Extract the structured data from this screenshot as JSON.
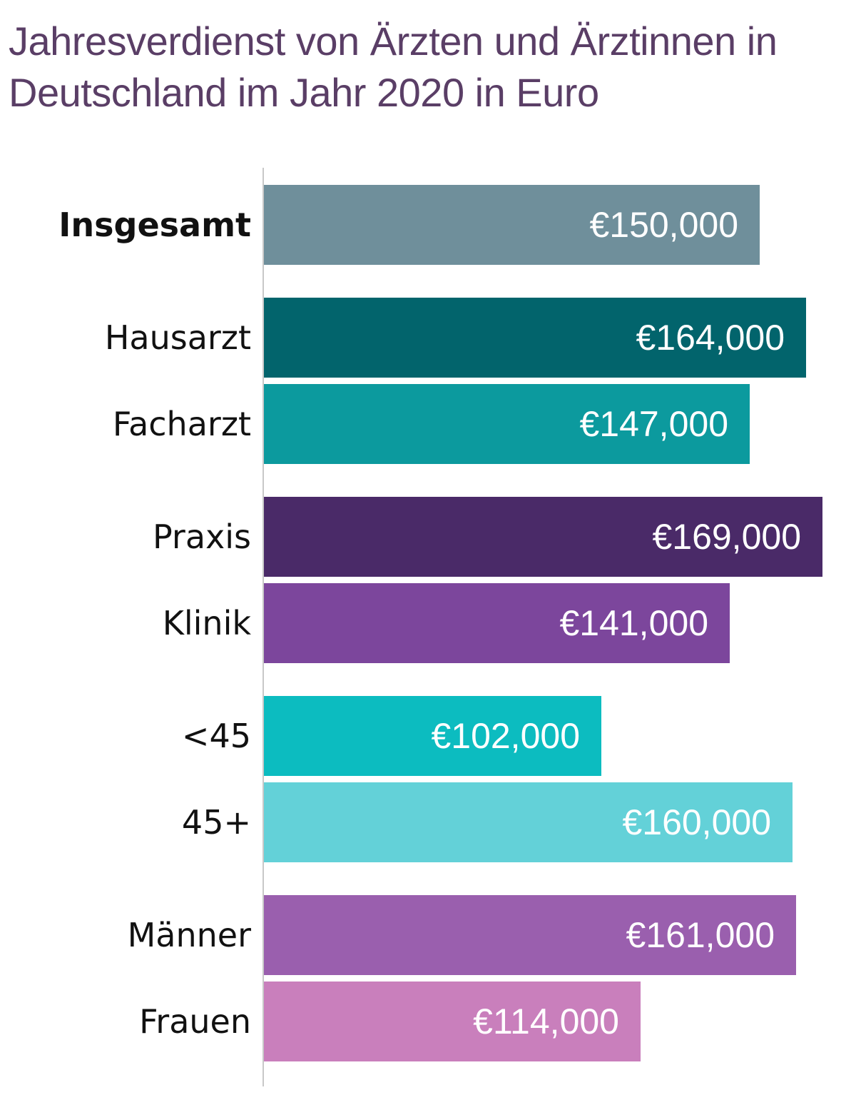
{
  "chart_data": {
    "type": "bar",
    "orientation": "horizontal",
    "title": "Jahresverdienst von Ärzten und Ärztinnen in Deutschland im Jahr 2020 in Euro",
    "xlabel": "",
    "ylabel": "",
    "grid": false,
    "legend": "none",
    "bars": [
      {
        "category": "Insgesamt",
        "value": 150000,
        "label": "€150,000",
        "color": "#6f8f9b",
        "group": 0,
        "bold": true
      },
      {
        "category": "Hausarzt",
        "value": 164000,
        "label": "€164,000",
        "color": "#02646c",
        "group": 1,
        "bold": false
      },
      {
        "category": "Facharzt",
        "value": 147000,
        "label": "€147,000",
        "color": "#0c9a9e",
        "group": 1,
        "bold": false
      },
      {
        "category": "Praxis",
        "value": 169000,
        "label": "€169,000",
        "color": "#4a2a68",
        "group": 2,
        "bold": false
      },
      {
        "category": "Klinik",
        "value": 141000,
        "label": "€141,000",
        "color": "#7c469c",
        "group": 2,
        "bold": false
      },
      {
        "category": "<45",
        "value": 102000,
        "label": "€102,000",
        "color": "#0cbcc0",
        "group": 3,
        "bold": false
      },
      {
        "category": "45+",
        "value": 160000,
        "label": "€160,000",
        "color": "#63d1d8",
        "group": 3,
        "bold": false
      },
      {
        "category": "Männer",
        "value": 161000,
        "label": "€161,000",
        "color": "#9a5fae",
        "group": 4,
        "bold": false
      },
      {
        "category": "Frauen",
        "value": 114000,
        "label": "€114,000",
        "color": "#c97fbc",
        "group": 4,
        "bold": false
      }
    ],
    "xlim": [
      0,
      169000
    ]
  }
}
